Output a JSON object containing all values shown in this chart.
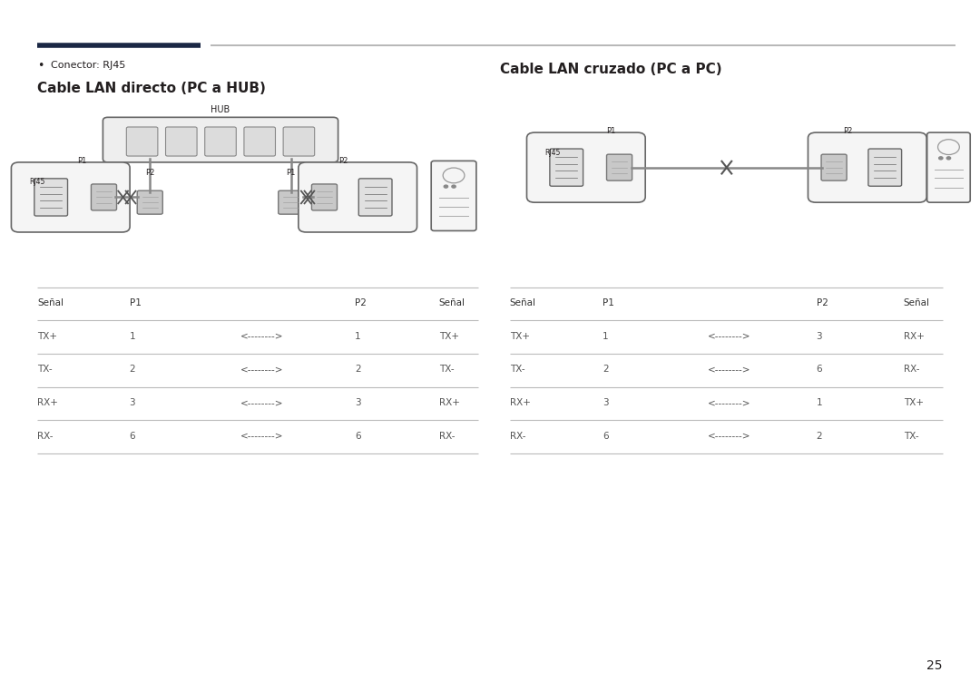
{
  "bg_color": "#ffffff",
  "text_color": "#231f20",
  "dark_navy": "#1a2744",
  "gray_line": "#cccccc",
  "page_number": "25",
  "bullet_text": "Conector: RJ45",
  "left_title": "Cable LAN directo (PC a HUB)",
  "right_title": "Cable LAN cruzado (PC a PC)",
  "direct_table_header": [
    "Señal",
    "P1",
    "",
    "P2",
    "Señal"
  ],
  "direct_table_rows": [
    [
      "TX+",
      "1",
      "<-------->",
      "1",
      "TX+"
    ],
    [
      "TX-",
      "2",
      "<-------->",
      "2",
      "TX-"
    ],
    [
      "RX+",
      "3",
      "<-------->",
      "3",
      "RX+"
    ],
    [
      "RX-",
      "6",
      "<-------->",
      "6",
      "RX-"
    ]
  ],
  "cross_table_header": [
    "Señal",
    "P1",
    "",
    "P2",
    "Señal"
  ],
  "cross_table_rows": [
    [
      "TX+",
      "1",
      "<-------->",
      "3",
      "RX+"
    ],
    [
      "TX-",
      "2",
      "<-------->",
      "6",
      "RX-"
    ],
    [
      "RX+",
      "3",
      "<-------->",
      "1",
      "TX+"
    ],
    [
      "RX-",
      "6",
      "<-------->",
      "2",
      "TX-"
    ]
  ]
}
